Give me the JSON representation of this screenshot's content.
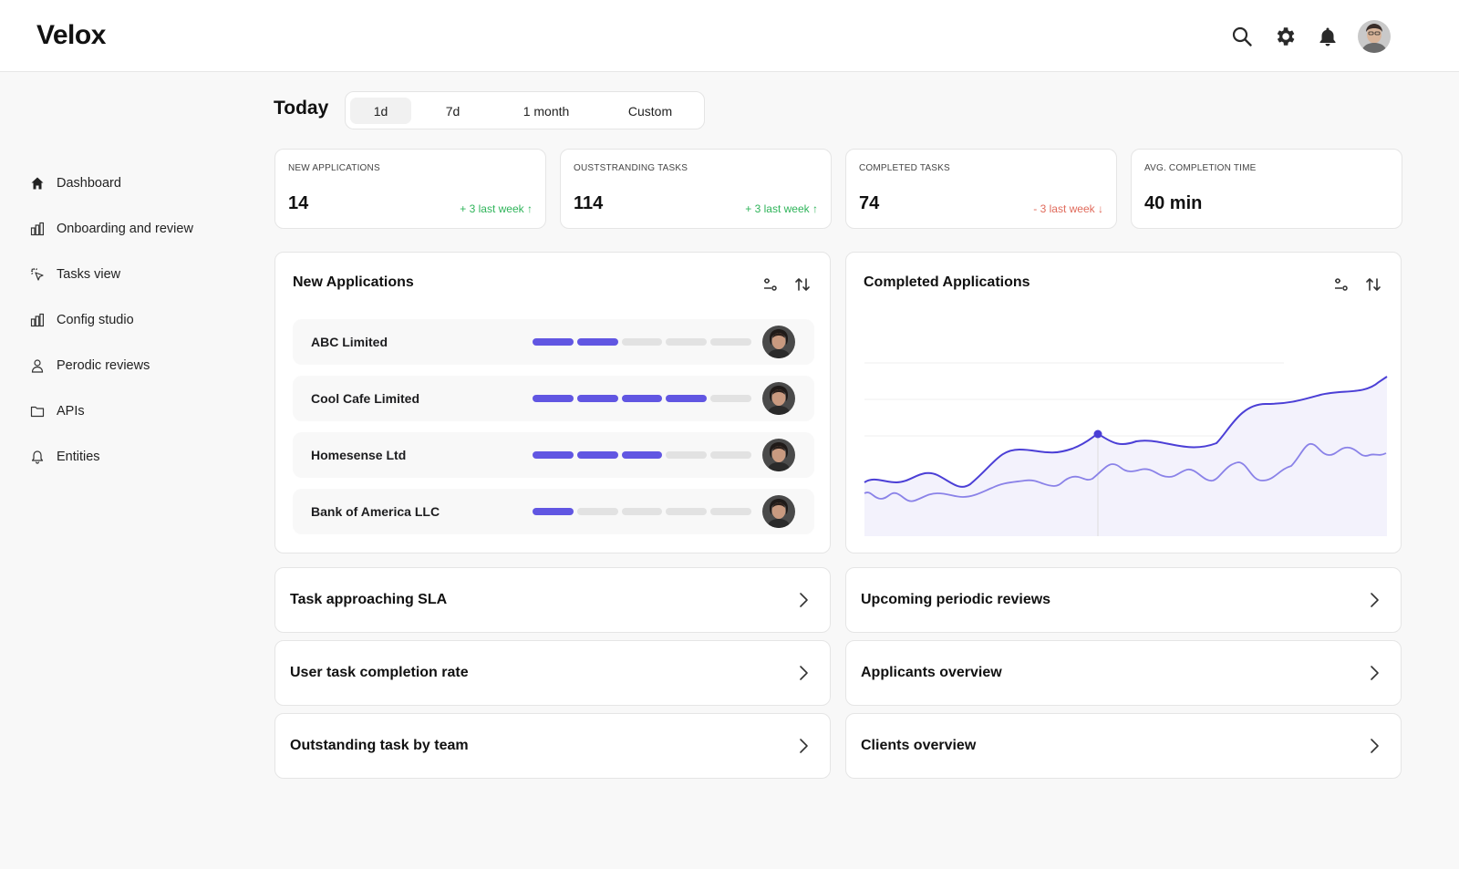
{
  "app": {
    "logo": "Velox"
  },
  "header": {
    "icons": [
      "search-icon",
      "gear-icon",
      "bell-icon",
      "user-avatar"
    ]
  },
  "sidebar": {
    "items": [
      {
        "label": "Dashboard",
        "icon": "home-icon"
      },
      {
        "label": "Onboarding and review",
        "icon": "bar-chart-icon"
      },
      {
        "label": "Tasks view",
        "icon": "cursor-click-icon"
      },
      {
        "label": "Config studio",
        "icon": "bar-chart-icon"
      },
      {
        "label": "Perodic reviews",
        "icon": "user-icon"
      },
      {
        "label": "APIs",
        "icon": "folder-icon"
      },
      {
        "label": "Entities",
        "icon": "bell-icon"
      }
    ]
  },
  "period": {
    "title": "Today",
    "options": [
      "1d",
      "7d",
      "1 month",
      "Custom"
    ],
    "selected": "1d"
  },
  "stats": [
    {
      "label": "NEW APPLICATIONS",
      "value": "14",
      "delta": "+ 3 last week ↑",
      "trend": "up"
    },
    {
      "label": "OUSTSTRANDING TASKS",
      "value": "114",
      "delta": "+ 3 last week ↑",
      "trend": "up"
    },
    {
      "label": "COMPLETED TASKS",
      "value": "74",
      "delta": "- 3 last week ↓",
      "trend": "down"
    },
    {
      "label": "AVG. COMPLETION TIME",
      "value": "40 min",
      "delta": "",
      "trend": "none"
    }
  ],
  "new_applications": {
    "title": "New Applications",
    "rows": [
      {
        "name": "ABC Limited",
        "progress": 2,
        "total": 5
      },
      {
        "name": "Cool Cafe Limited",
        "progress": 4,
        "total": 5
      },
      {
        "name": "Homesense Ltd",
        "progress": 3,
        "total": 5
      },
      {
        "name": "Bank of America LLC",
        "progress": 1,
        "total": 5
      }
    ]
  },
  "completed_applications": {
    "title": "Completed Applications",
    "colors": {
      "primary": "#4b3fd6",
      "secondary": "#8a82e8",
      "fill": "#f3f2fc"
    }
  },
  "links": {
    "left": [
      "Task approaching SLA",
      "User task completion rate",
      "Outstanding task by team"
    ],
    "right": [
      "Upcoming periodic reviews",
      "Applicants overview",
      "Clients overview"
    ]
  },
  "colors": {
    "accent": "#6156e2",
    "up": "#2fb45a",
    "down": "#e06a5b"
  }
}
